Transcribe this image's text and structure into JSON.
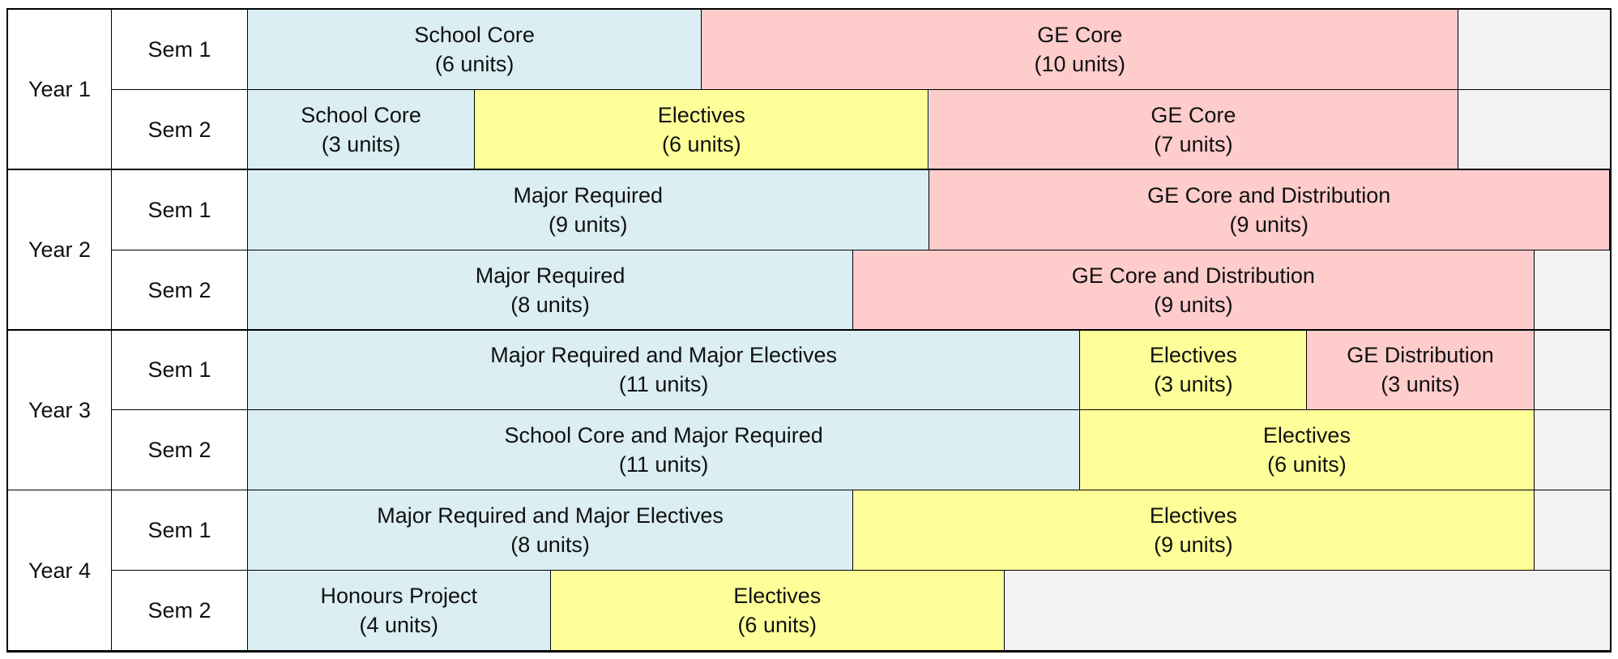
{
  "colors": {
    "school": "#daeef3",
    "elective": "#ffff99",
    "ge": "#ffcccc",
    "empty": "#f2f2f2"
  },
  "scale_units": 18,
  "years": [
    {
      "label": "Year 1",
      "semesters": [
        {
          "label": "Sem 1",
          "blocks": [
            {
              "name": "School Core",
              "units_label": "(6 units)",
              "units": 6,
              "category": "school"
            },
            {
              "name": "GE Core",
              "units_label": "(10 units)",
              "units": 10,
              "category": "ge"
            }
          ]
        },
        {
          "label": "Sem 2",
          "blocks": [
            {
              "name": "School Core",
              "units_label": "(3 units)",
              "units": 3,
              "category": "school"
            },
            {
              "name": "Electives",
              "units_label": "(6 units)",
              "units": 6,
              "category": "elective"
            },
            {
              "name": "GE Core",
              "units_label": "(7 units)",
              "units": 7,
              "category": "ge"
            }
          ]
        }
      ]
    },
    {
      "label": "Year 2",
      "semesters": [
        {
          "label": "Sem 1",
          "blocks": [
            {
              "name": "Major Required",
              "units_label": "(9 units)",
              "units": 9,
              "category": "school"
            },
            {
              "name": "GE Core and Distribution",
              "units_label": "(9 units)",
              "units": 9,
              "category": "ge"
            }
          ]
        },
        {
          "label": "Sem 2",
          "blocks": [
            {
              "name": "Major Required",
              "units_label": "(8 units)",
              "units": 8,
              "category": "school"
            },
            {
              "name": "GE Core and Distribution",
              "units_label": "(9 units)",
              "units": 9,
              "category": "ge"
            }
          ]
        }
      ]
    },
    {
      "label": "Year 3",
      "semesters": [
        {
          "label": "Sem 1",
          "blocks": [
            {
              "name": "Major Required and Major Electives",
              "units_label": "(11 units)",
              "units": 11,
              "category": "school"
            },
            {
              "name": "Electives",
              "units_label": "(3 units)",
              "units": 3,
              "category": "elective"
            },
            {
              "name": "GE Distribution",
              "units_label": "(3 units)",
              "units": 3,
              "category": "ge"
            }
          ]
        },
        {
          "label": "Sem 2",
          "blocks": [
            {
              "name": "School Core and Major Required",
              "units_label": "(11 units)",
              "units": 11,
              "category": "school"
            },
            {
              "name": "Electives",
              "units_label": "(6 units)",
              "units": 6,
              "category": "elective"
            }
          ]
        }
      ]
    },
    {
      "label": "Year 4",
      "semesters": [
        {
          "label": "Sem 1",
          "blocks": [
            {
              "name": "Major Required and Major Electives",
              "units_label": "(8 units)",
              "units": 8,
              "category": "school"
            },
            {
              "name": "Electives",
              "units_label": "(9 units)",
              "units": 9,
              "category": "elective"
            }
          ]
        },
        {
          "label": "Sem 2",
          "blocks": [
            {
              "name": "Honours Project",
              "units_label": "(4 units)",
              "units": 4,
              "category": "school"
            },
            {
              "name": "Electives",
              "units_label": "(6 units)",
              "units": 6,
              "category": "elective"
            }
          ]
        }
      ]
    }
  ]
}
